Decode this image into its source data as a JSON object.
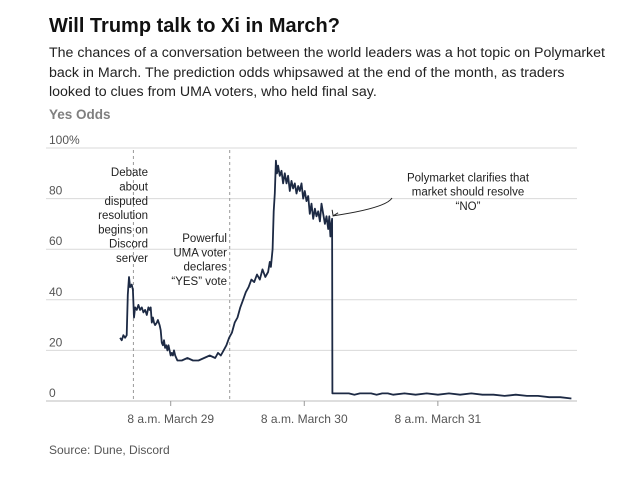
{
  "title": "Will Trump talk to Xi in March?",
  "subtitle": "The chances of a conversation between the world leaders was a hot topic on Polymarket back in March. The prediction odds whipsawed at the end of the month, as traders looked to clues from UMA voters, who held final say.",
  "source": "Source: Dune, Discord",
  "colors": {
    "line": "#1d2a44",
    "grid": "#d9d9d9",
    "guide": "#999999",
    "tick_text": "#555555",
    "axis_label": "#7f7f7f"
  },
  "chart_data": {
    "type": "line",
    "ylabel": "Yes Odds",
    "ylim": [
      0,
      100
    ],
    "y_ticks": [
      {
        "value": 0,
        "label": "0"
      },
      {
        "value": 20,
        "label": "20"
      },
      {
        "value": 40,
        "label": "40"
      },
      {
        "value": 60,
        "label": "60"
      },
      {
        "value": 80,
        "label": "80"
      },
      {
        "value": 100,
        "label": "100%"
      }
    ],
    "x_unit": "hours since midnight, March 28",
    "xlim": [
      17.5,
      105
    ],
    "x_ticks": [
      {
        "value": 32,
        "label": "8 a.m. March 29"
      },
      {
        "value": 56,
        "label": "8 a.m. March 30"
      },
      {
        "value": 80,
        "label": "8 a.m. March 31"
      }
    ],
    "grid": true,
    "series": [
      {
        "values": [
          [
            22.9,
            25
          ],
          [
            23.2,
            24
          ],
          [
            23.5,
            26
          ],
          [
            23.8,
            25
          ],
          [
            24.1,
            26
          ],
          [
            24.3,
            42
          ],
          [
            24.5,
            49
          ],
          [
            24.7,
            45
          ],
          [
            25.0,
            46
          ],
          [
            25.2,
            44
          ],
          [
            25.4,
            33
          ],
          [
            25.6,
            37
          ],
          [
            25.9,
            36
          ],
          [
            26.2,
            38
          ],
          [
            26.5,
            36
          ],
          [
            26.8,
            37
          ],
          [
            27.1,
            35
          ],
          [
            27.4,
            36
          ],
          [
            27.7,
            34
          ],
          [
            28.0,
            37
          ],
          [
            28.2,
            36
          ],
          [
            28.4,
            37
          ],
          [
            28.6,
            31
          ],
          [
            28.8,
            33
          ],
          [
            29.0,
            31
          ],
          [
            29.2,
            30
          ],
          [
            29.5,
            31
          ],
          [
            29.7,
            32
          ],
          [
            30.0,
            30
          ],
          [
            30.2,
            28
          ],
          [
            30.4,
            23
          ],
          [
            30.6,
            22
          ],
          [
            30.8,
            24
          ],
          [
            31.0,
            21
          ],
          [
            31.2,
            22
          ],
          [
            31.4,
            20
          ],
          [
            31.6,
            22
          ],
          [
            31.8,
            20
          ],
          [
            32.0,
            18
          ],
          [
            32.2,
            19
          ],
          [
            32.4,
            18
          ],
          [
            32.6,
            20
          ],
          [
            32.8,
            18
          ],
          [
            33.0,
            17
          ],
          [
            33.2,
            16
          ],
          [
            34.0,
            16
          ],
          [
            35.0,
            17
          ],
          [
            36.0,
            16
          ],
          [
            37.0,
            16
          ],
          [
            38.0,
            17
          ],
          [
            39.0,
            18
          ],
          [
            40.0,
            17
          ],
          [
            40.5,
            19
          ],
          [
            41.0,
            18
          ],
          [
            41.5,
            20
          ],
          [
            42.0,
            22
          ],
          [
            42.5,
            25
          ],
          [
            43.0,
            27
          ],
          [
            43.5,
            31
          ],
          [
            44.0,
            33
          ],
          [
            44.5,
            37
          ],
          [
            45.0,
            40
          ],
          [
            45.5,
            43
          ],
          [
            46.0,
            45
          ],
          [
            46.5,
            48
          ],
          [
            47.0,
            47
          ],
          [
            47.5,
            50
          ],
          [
            48.0,
            48
          ],
          [
            48.5,
            52
          ],
          [
            49.0,
            49
          ],
          [
            49.5,
            51
          ],
          [
            49.8,
            55
          ],
          [
            50.0,
            53
          ],
          [
            50.3,
            60
          ],
          [
            50.5,
            75
          ],
          [
            50.7,
            82
          ],
          [
            50.9,
            95
          ],
          [
            51.1,
            90
          ],
          [
            51.3,
            93
          ],
          [
            51.6,
            89
          ],
          [
            51.9,
            91
          ],
          [
            52.2,
            86
          ],
          [
            52.5,
            90
          ],
          [
            52.8,
            86
          ],
          [
            53.1,
            89
          ],
          [
            53.4,
            83
          ],
          [
            53.7,
            87
          ],
          [
            54.0,
            84
          ],
          [
            54.3,
            86
          ],
          [
            54.6,
            82
          ],
          [
            54.9,
            85
          ],
          [
            55.2,
            83
          ],
          [
            55.5,
            86
          ],
          [
            55.8,
            80
          ],
          [
            56.1,
            83
          ],
          [
            56.4,
            79
          ],
          [
            56.7,
            81
          ],
          [
            57.0,
            74
          ],
          [
            57.3,
            78
          ],
          [
            57.6,
            72
          ],
          [
            57.9,
            76
          ],
          [
            58.2,
            73
          ],
          [
            58.5,
            75
          ],
          [
            58.8,
            71
          ],
          [
            59.1,
            78
          ],
          [
            59.4,
            74
          ],
          [
            59.7,
            70
          ],
          [
            60.0,
            73
          ],
          [
            60.3,
            68
          ],
          [
            60.5,
            73
          ],
          [
            60.7,
            65
          ],
          [
            60.8,
            69
          ],
          [
            61.0,
            72
          ],
          [
            61.05,
            3
          ],
          [
            62,
            3
          ],
          [
            63,
            3
          ],
          [
            64,
            3
          ],
          [
            65,
            2.5
          ],
          [
            66,
            3
          ],
          [
            67,
            3
          ],
          [
            68,
            3
          ],
          [
            69,
            2.5
          ],
          [
            70,
            3
          ],
          [
            71,
            3
          ],
          [
            72,
            2.5
          ],
          [
            74,
            3
          ],
          [
            76,
            2.5
          ],
          [
            78,
            3
          ],
          [
            80,
            2.5
          ],
          [
            82,
            3
          ],
          [
            84,
            2.5
          ],
          [
            86,
            3
          ],
          [
            88,
            2.5
          ],
          [
            90,
            2.5
          ],
          [
            92,
            2
          ],
          [
            94,
            2.5
          ],
          [
            96,
            2
          ],
          [
            98,
            2
          ],
          [
            100,
            1.5
          ],
          [
            102,
            1.5
          ],
          [
            104,
            1
          ]
        ]
      }
    ],
    "annotations": [
      {
        "lines": [
          "Debate",
          "about",
          "disputed",
          "resolution",
          "begins on",
          "Discord",
          "server"
        ],
        "x": 30,
        "y": 92
      },
      {
        "lines": [
          "Powerful",
          "UMA voter",
          "declares",
          "“YES” vote"
        ],
        "x": 44,
        "y": 66
      },
      {
        "lines": [
          "Polymarket clarifies that",
          "market should resolve",
          "“NO”"
        ],
        "x": 71,
        "y": 90
      }
    ],
    "guides": [
      {
        "x": 25.3
      },
      {
        "x": 42.6
      }
    ]
  }
}
